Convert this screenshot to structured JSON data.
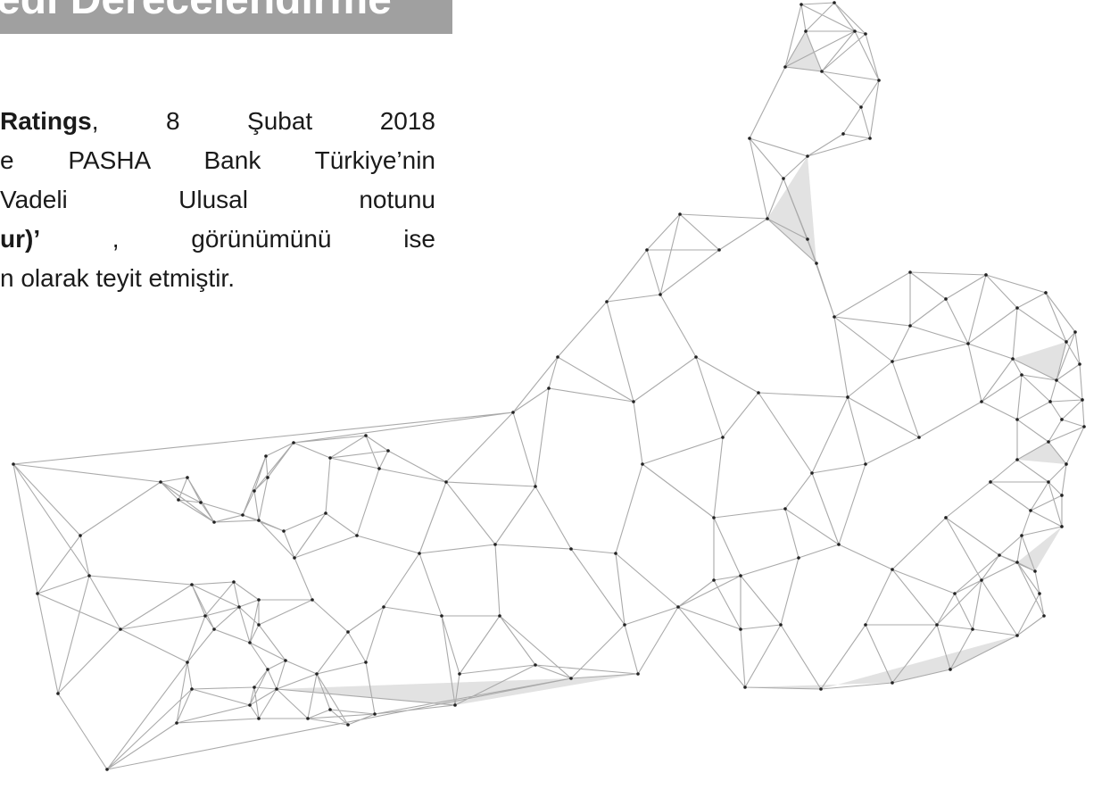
{
  "header": {
    "title": "edi Derecelendirme"
  },
  "body": {
    "lines": [
      [
        {
          "text": "Ratings",
          "bold": true
        },
        {
          "text": ", 8 Şubat 2018"
        }
      ],
      [
        {
          "text": "e PASHA Bank Türkiye’nin"
        }
      ],
      [
        {
          "text": "Vadeli Ulusal notunu"
        }
      ],
      [
        {
          "text": "ur)’",
          "bold": true
        },
        {
          "text": " , görünümünü ise"
        }
      ],
      [
        {
          "text": "n olarak teyit etmiştir."
        }
      ]
    ]
  }
}
